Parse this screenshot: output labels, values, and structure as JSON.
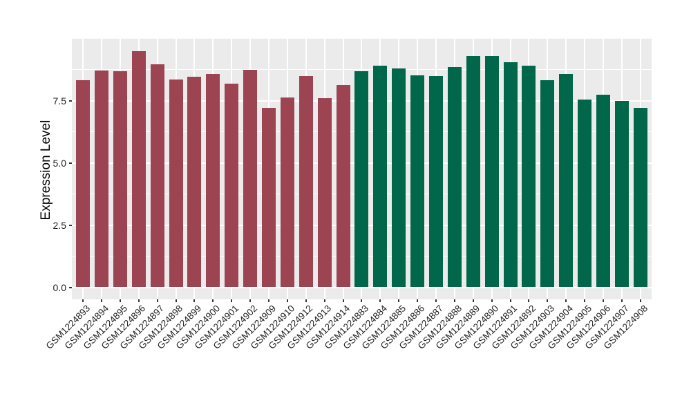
{
  "chart_data": {
    "type": "bar",
    "title": "",
    "xlabel": "",
    "ylabel": "Expression Level",
    "ylim": [
      0,
      10
    ],
    "grid": "on",
    "legend_position": "none",
    "panel_background": "#EBEBEB",
    "gridline_color": "#FFFFFF",
    "yticks": [
      {
        "value": 0,
        "label": "0.0"
      },
      {
        "value": 2.5,
        "label": "2.5"
      },
      {
        "value": 5,
        "label": "5.0"
      },
      {
        "value": 7.5,
        "label": "7.5"
      }
    ],
    "minor_gridlines": [
      1.25,
      3.75,
      6.25,
      8.75
    ],
    "group_colors": {
      "maroon": "#9C4452",
      "green": "#01674A"
    },
    "bars": [
      {
        "label": "GSM1224893",
        "value": 8.32,
        "group": "maroon"
      },
      {
        "label": "GSM1224894",
        "value": 8.71,
        "group": "maroon"
      },
      {
        "label": "GSM1224895",
        "value": 8.67,
        "group": "maroon"
      },
      {
        "label": "GSM1224896",
        "value": 9.49,
        "group": "maroon"
      },
      {
        "label": "GSM1224897",
        "value": 8.97,
        "group": "maroon"
      },
      {
        "label": "GSM1224898",
        "value": 8.34,
        "group": "maroon"
      },
      {
        "label": "GSM1224899",
        "value": 8.47,
        "group": "maroon"
      },
      {
        "label": "GSM1224900",
        "value": 8.57,
        "group": "maroon"
      },
      {
        "label": "GSM1224901",
        "value": 8.18,
        "group": "maroon"
      },
      {
        "label": "GSM1224902",
        "value": 8.74,
        "group": "maroon"
      },
      {
        "label": "GSM1224909",
        "value": 7.2,
        "group": "maroon"
      },
      {
        "label": "GSM1224910",
        "value": 7.63,
        "group": "maroon"
      },
      {
        "label": "GSM1224912",
        "value": 8.48,
        "group": "maroon"
      },
      {
        "label": "GSM1224913",
        "value": 7.59,
        "group": "maroon"
      },
      {
        "label": "GSM1224914",
        "value": 8.13,
        "group": "maroon"
      },
      {
        "label": "GSM1224883",
        "value": 8.68,
        "group": "green"
      },
      {
        "label": "GSM1224884",
        "value": 8.9,
        "group": "green"
      },
      {
        "label": "GSM1224885",
        "value": 8.78,
        "group": "green"
      },
      {
        "label": "GSM1224886",
        "value": 8.51,
        "group": "green"
      },
      {
        "label": "GSM1224887",
        "value": 8.49,
        "group": "green"
      },
      {
        "label": "GSM1224888",
        "value": 8.84,
        "group": "green"
      },
      {
        "label": "GSM1224889",
        "value": 9.29,
        "group": "green"
      },
      {
        "label": "GSM1224890",
        "value": 9.3,
        "group": "green"
      },
      {
        "label": "GSM1224891",
        "value": 9.04,
        "group": "green"
      },
      {
        "label": "GSM1224892",
        "value": 8.9,
        "group": "green"
      },
      {
        "label": "GSM1224903",
        "value": 8.32,
        "group": "green"
      },
      {
        "label": "GSM1224904",
        "value": 8.56,
        "group": "green"
      },
      {
        "label": "GSM1224905",
        "value": 7.53,
        "group": "green"
      },
      {
        "label": "GSM1224906",
        "value": 7.73,
        "group": "green"
      },
      {
        "label": "GSM1224907",
        "value": 7.49,
        "group": "green"
      },
      {
        "label": "GSM1224908",
        "value": 7.21,
        "group": "green"
      }
    ]
  }
}
